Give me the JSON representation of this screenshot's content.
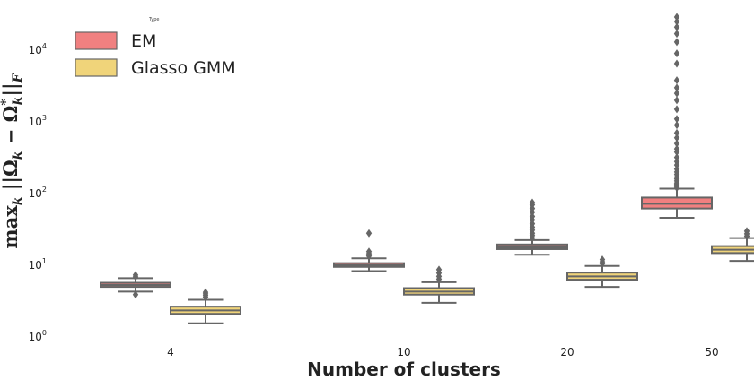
{
  "chart_data": {
    "type": "box",
    "title": "",
    "xlabel": "Number of clusters",
    "ylabel": "max_k ||Ω_k − Ω*_k||_F",
    "ylabel_display": {
      "main": "max",
      "sub": "k",
      "body": " ||Ω",
      "sub2": "k",
      "minus": " − Ω",
      "sup3": "*",
      "sub3": "k",
      "end": "||",
      "sub4": "F"
    },
    "yscale": "log",
    "ylim": [
      1,
      30000
    ],
    "yticks": [
      {
        "value": 1,
        "base": "10",
        "exp": "0"
      },
      {
        "value": 10,
        "base": "10",
        "exp": "1"
      },
      {
        "value": 100,
        "base": "10",
        "exp": "2"
      },
      {
        "value": 1000,
        "base": "10",
        "exp": "3"
      },
      {
        "value": 10000,
        "base": "10",
        "exp": "4"
      }
    ],
    "categories": [
      "4",
      "10",
      "20",
      "50"
    ],
    "legend": {
      "title": "Type",
      "placement": "top-left"
    },
    "series": [
      {
        "name": "EM",
        "color": "#f08080",
        "boxes": [
          {
            "whislo": 4.3,
            "q1": 5.0,
            "med": 5.3,
            "q3": 5.7,
            "whishi": 6.6,
            "fliers": [
              3.9,
              6.9,
              7.3
            ]
          },
          {
            "whislo": 8.3,
            "q1": 9.5,
            "med": 10.0,
            "q3": 10.7,
            "whishi": 12.5,
            "fliers": [
              13.5,
              14.5,
              15.5,
              28
            ]
          },
          {
            "whislo": 14,
            "q1": 16.8,
            "med": 17.8,
            "q3": 19.5,
            "whishi": 22.5,
            "fliers": [
              24,
              26,
              28,
              31,
              34,
              38,
              43,
              48,
              55,
              62,
              70,
              75
            ]
          },
          {
            "whislo": 46,
            "q1": 62,
            "med": 72,
            "q3": 88,
            "whishi": 117,
            "fliers": [
              120,
              125,
              130,
              135,
              140,
              150,
              160,
              170,
              185,
              200,
              220,
              250,
              280,
              320,
              380,
              420,
              500,
              600,
              700,
              900,
              1100,
              1500,
              2000,
              2500,
              3000,
              3800,
              6500,
              9000,
              13000,
              17000,
              21000,
              25000,
              29000
            ]
          }
        ]
      },
      {
        "name": "Glasso GMM",
        "color": "#f0d47a",
        "boxes": [
          {
            "whislo": 1.55,
            "q1": 2.1,
            "med": 2.35,
            "q3": 2.65,
            "whishi": 3.3,
            "fliers": [
              3.6,
              3.8,
              4.0,
              4.2
            ]
          },
          {
            "whislo": 3.0,
            "q1": 3.9,
            "med": 4.3,
            "q3": 4.8,
            "whishi": 5.8,
            "fliers": [
              6.4,
              7.0,
              7.8,
              8.7
            ]
          },
          {
            "whislo": 5.0,
            "q1": 6.3,
            "med": 7.0,
            "q3": 7.9,
            "whishi": 9.8,
            "fliers": [
              10.5,
              11.2,
              12.0
            ]
          },
          {
            "whislo": 11.5,
            "q1": 14.8,
            "med": 16.5,
            "q3": 18.5,
            "whishi": 24,
            "fliers": [
              25.5,
              27.5,
              30
            ]
          }
        ]
      }
    ],
    "box_edge_color": "#666666",
    "grid": false
  }
}
